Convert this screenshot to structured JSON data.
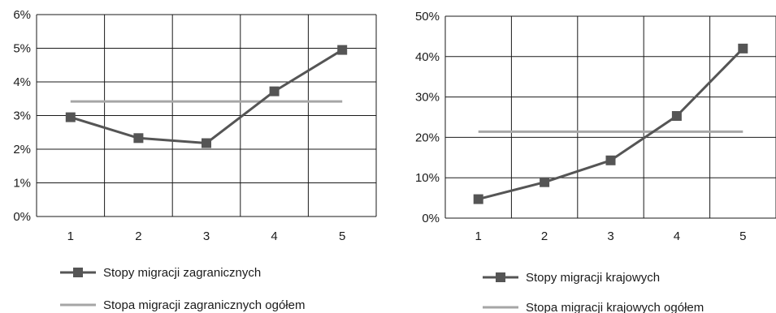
{
  "chart_data": [
    {
      "type": "line",
      "categories": [
        "1",
        "2",
        "3",
        "4",
        "5"
      ],
      "ylim": [
        0,
        6
      ],
      "yticks": [
        0,
        1,
        2,
        3,
        4,
        5,
        6
      ],
      "ytick_labels": [
        "0%",
        "1%",
        "2%",
        "3%",
        "4%",
        "5%",
        "6%"
      ],
      "grid": true,
      "legend_position": "bottom",
      "series": [
        {
          "name": "Stopy migracji zagranicznych",
          "values": [
            2.95,
            2.33,
            2.18,
            3.72,
            4.95
          ],
          "color": "#555555",
          "marker": "square"
        },
        {
          "name": "Stopa migracji zagranicznych ogółem",
          "values": [
            3.42,
            3.42,
            3.42,
            3.42,
            3.42
          ],
          "color": "#a6a6a6",
          "marker": "none"
        }
      ]
    },
    {
      "type": "line",
      "categories": [
        "1",
        "2",
        "3",
        "4",
        "5"
      ],
      "ylim": [
        0,
        50
      ],
      "yticks": [
        0,
        10,
        20,
        30,
        40,
        50
      ],
      "ytick_labels": [
        "0%",
        "10%",
        "20%",
        "30%",
        "40%",
        "50%"
      ],
      "grid": true,
      "legend_position": "bottom",
      "series": [
        {
          "name": "Stopy migracji krajowych",
          "values": [
            4.7,
            8.9,
            14.3,
            25.3,
            42.0
          ],
          "color": "#555555",
          "marker": "square"
        },
        {
          "name": "Stopa migracji krajowych ogółem",
          "values": [
            21.4,
            21.4,
            21.4,
            21.4,
            21.4
          ],
          "color": "#a6a6a6",
          "marker": "none"
        }
      ]
    }
  ]
}
